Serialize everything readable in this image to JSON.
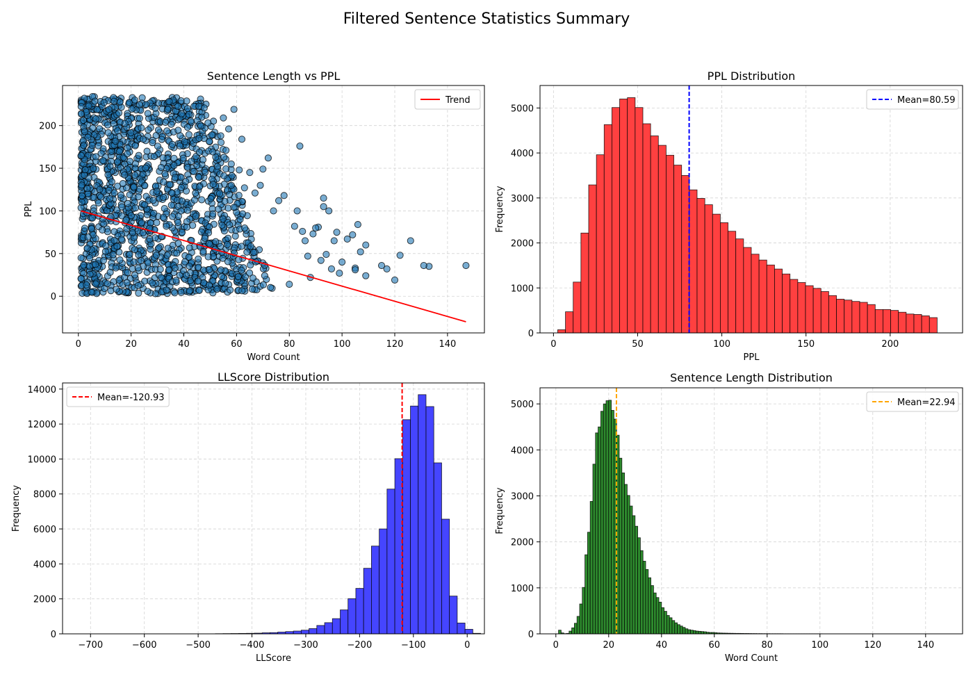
{
  "figure": {
    "title": "Filtered Sentence Statistics Summary"
  },
  "chart_data": [
    {
      "id": "scatter",
      "type": "scatter",
      "title": "Sentence Length vs PPL",
      "xlabel": "Word Count",
      "ylabel": "PPL",
      "xlim": [
        -6,
        154
      ],
      "ylim": [
        -43,
        247
      ],
      "xticks": [
        0,
        20,
        40,
        60,
        80,
        100,
        120,
        140
      ],
      "yticks": [
        0,
        50,
        100,
        150,
        200
      ],
      "grid": true,
      "legend_position": "top-right",
      "legend": [
        {
          "label": "Trend",
          "kind": "line",
          "color": "#ff0000"
        }
      ],
      "point_color": "#1f77b4",
      "trend": {
        "x": [
          1,
          147
        ],
        "y": [
          100,
          -30
        ]
      },
      "outlier_points": [
        {
          "x": 147,
          "y": 36
        },
        {
          "x": 133,
          "y": 35
        },
        {
          "x": 131,
          "y": 36
        },
        {
          "x": 126,
          "y": 65
        },
        {
          "x": 122,
          "y": 48
        },
        {
          "x": 120,
          "y": 19
        },
        {
          "x": 117,
          "y": 32
        },
        {
          "x": 115,
          "y": 36
        },
        {
          "x": 109,
          "y": 60
        },
        {
          "x": 109,
          "y": 24
        },
        {
          "x": 107,
          "y": 52
        },
        {
          "x": 106,
          "y": 84
        },
        {
          "x": 105,
          "y": 33
        },
        {
          "x": 105,
          "y": 31
        },
        {
          "x": 104,
          "y": 72
        },
        {
          "x": 102,
          "y": 67
        },
        {
          "x": 100,
          "y": 40
        },
        {
          "x": 99,
          "y": 27
        },
        {
          "x": 98,
          "y": 75
        },
        {
          "x": 97,
          "y": 65
        },
        {
          "x": 96,
          "y": 32
        },
        {
          "x": 95,
          "y": 100
        },
        {
          "x": 94,
          "y": 49
        },
        {
          "x": 93,
          "y": 115
        },
        {
          "x": 93,
          "y": 105
        },
        {
          "x": 92,
          "y": 42
        },
        {
          "x": 91,
          "y": 81
        },
        {
          "x": 90,
          "y": 80
        },
        {
          "x": 89,
          "y": 73
        },
        {
          "x": 88,
          "y": 22
        },
        {
          "x": 87,
          "y": 47
        },
        {
          "x": 86,
          "y": 65
        },
        {
          "x": 85,
          "y": 76
        },
        {
          "x": 84,
          "y": 176
        },
        {
          "x": 83,
          "y": 100
        },
        {
          "x": 82,
          "y": 82
        },
        {
          "x": 80,
          "y": 14
        },
        {
          "x": 78,
          "y": 118
        },
        {
          "x": 76,
          "y": 112
        },
        {
          "x": 74,
          "y": 100
        },
        {
          "x": 72,
          "y": 162
        },
        {
          "x": 70,
          "y": 149
        },
        {
          "x": 69,
          "y": 130
        },
        {
          "x": 67,
          "y": 121
        },
        {
          "x": 65,
          "y": 145
        },
        {
          "x": 63,
          "y": 127
        },
        {
          "x": 62,
          "y": 184
        },
        {
          "x": 61,
          "y": 148
        },
        {
          "x": 59,
          "y": 219
        },
        {
          "x": 58,
          "y": 155
        },
        {
          "x": 57,
          "y": 196
        },
        {
          "x": 55,
          "y": 209
        },
        {
          "x": 56,
          "y": 171
        },
        {
          "x": 54,
          "y": 188
        }
      ],
      "dense_region": {
        "x_from": 1,
        "x_to": 70,
        "y_from": 3,
        "y_to": 234,
        "max_x_at_y_min": 75,
        "max_x_at_y_max": 48
      }
    },
    {
      "id": "ppl_hist",
      "type": "bar",
      "title": "PPL Distribution",
      "xlabel": "PPL",
      "ylabel": "Frequency",
      "xlim": [
        -8,
        243
      ],
      "ylim": [
        0,
        5500
      ],
      "xticks": [
        0,
        50,
        100,
        150,
        200
      ],
      "yticks": [
        0,
        1000,
        2000,
        3000,
        4000,
        5000
      ],
      "grid": true,
      "legend_position": "top-right",
      "legend": [
        {
          "label": "Mean=80.59",
          "kind": "dashed",
          "color": "#0000ff"
        }
      ],
      "bar_color": "#ff4040",
      "bin_start": 2.5,
      "bin_width": 4.6,
      "values": [
        70,
        470,
        1130,
        2220,
        3290,
        3960,
        4630,
        5010,
        5200,
        5230,
        5010,
        4650,
        4380,
        4170,
        3950,
        3730,
        3500,
        3180,
        2990,
        2850,
        2640,
        2450,
        2260,
        2090,
        1900,
        1750,
        1620,
        1510,
        1420,
        1310,
        1190,
        1120,
        1050,
        990,
        920,
        830,
        750,
        730,
        700,
        680,
        630,
        520,
        520,
        500,
        460,
        420,
        410,
        380,
        340
      ],
      "mean": 80.59
    },
    {
      "id": "llscore_hist",
      "type": "bar",
      "title": "LLScore Distribution",
      "xlabel": "LLScore",
      "ylabel": "Frequency",
      "xlim": [
        -752,
        32
      ],
      "ylim": [
        0,
        14350
      ],
      "xticks": [
        -700,
        -600,
        -500,
        -400,
        -300,
        -200,
        -100,
        0
      ],
      "xtick_labels": [
        "−700",
        "−600",
        "−500",
        "−400",
        "−300",
        "−200",
        "−100",
        "0"
      ],
      "yticks": [
        0,
        2000,
        4000,
        6000,
        8000,
        10000,
        12000,
        14000
      ],
      "grid": true,
      "legend_position": "top-left",
      "legend": [
        {
          "label": "Mean=-120.93",
          "kind": "dashed",
          "color": "#ff0000"
        }
      ],
      "bar_color": "#4545ff",
      "bin_start": -468,
      "bin_width": 14.5,
      "values": [
        10,
        15,
        20,
        25,
        30,
        40,
        60,
        70,
        100,
        130,
        160,
        210,
        300,
        480,
        640,
        870,
        1370,
        2010,
        2600,
        3750,
        5020,
        6000,
        8280,
        10020,
        12250,
        13030,
        13680,
        13000,
        9780,
        6560,
        2160,
        620,
        260,
        30
      ],
      "mean": -120.93
    },
    {
      "id": "length_hist",
      "type": "bar",
      "title": "Sentence Length Distribution",
      "xlabel": "Word Count",
      "ylabel": "Frequency",
      "xlim": [
        -6,
        154
      ],
      "ylim": [
        0,
        5350
      ],
      "xticks": [
        0,
        20,
        40,
        60,
        80,
        100,
        120,
        140
      ],
      "yticks": [
        0,
        1000,
        2000,
        3000,
        4000,
        5000
      ],
      "grid": true,
      "legend_position": "top-right",
      "legend": [
        {
          "label": "Mean=22.94",
          "kind": "dashed",
          "color": "#ffa500"
        }
      ],
      "bar_color": "#2e8b2e",
      "bin_start": 1,
      "bin_width": 1,
      "values": [
        80,
        20,
        5,
        10,
        60,
        130,
        230,
        380,
        650,
        1010,
        1720,
        2210,
        2880,
        3690,
        4370,
        4500,
        4840,
        5000,
        5070,
        5080,
        4860,
        4670,
        4320,
        3820,
        3500,
        3250,
        3010,
        2780,
        2570,
        2340,
        2090,
        1810,
        1580,
        1400,
        1220,
        1050,
        890,
        790,
        690,
        570,
        490,
        400,
        350,
        290,
        240,
        200,
        170,
        140,
        110,
        90,
        80,
        70,
        60,
        55,
        50,
        45,
        35,
        30,
        30,
        25,
        20,
        18,
        16,
        15,
        13,
        12,
        11,
        10,
        10,
        9,
        8,
        8,
        7,
        6,
        6,
        5,
        5,
        4,
        4,
        4,
        3,
        3,
        3,
        3,
        3,
        2,
        2,
        2,
        2,
        2,
        2,
        2,
        2,
        2,
        2,
        2,
        2,
        2,
        2,
        2,
        1,
        1,
        1,
        1,
        1,
        1,
        1,
        1,
        1,
        1,
        1,
        1,
        1,
        1,
        1,
        1,
        1,
        1,
        1,
        1,
        1,
        1,
        1,
        1,
        1,
        1,
        1,
        1,
        1,
        1,
        1,
        1,
        1,
        1,
        1,
        1,
        1,
        1,
        1,
        1,
        1,
        1,
        1,
        1,
        1,
        1
      ],
      "mean": 22.94
    }
  ]
}
